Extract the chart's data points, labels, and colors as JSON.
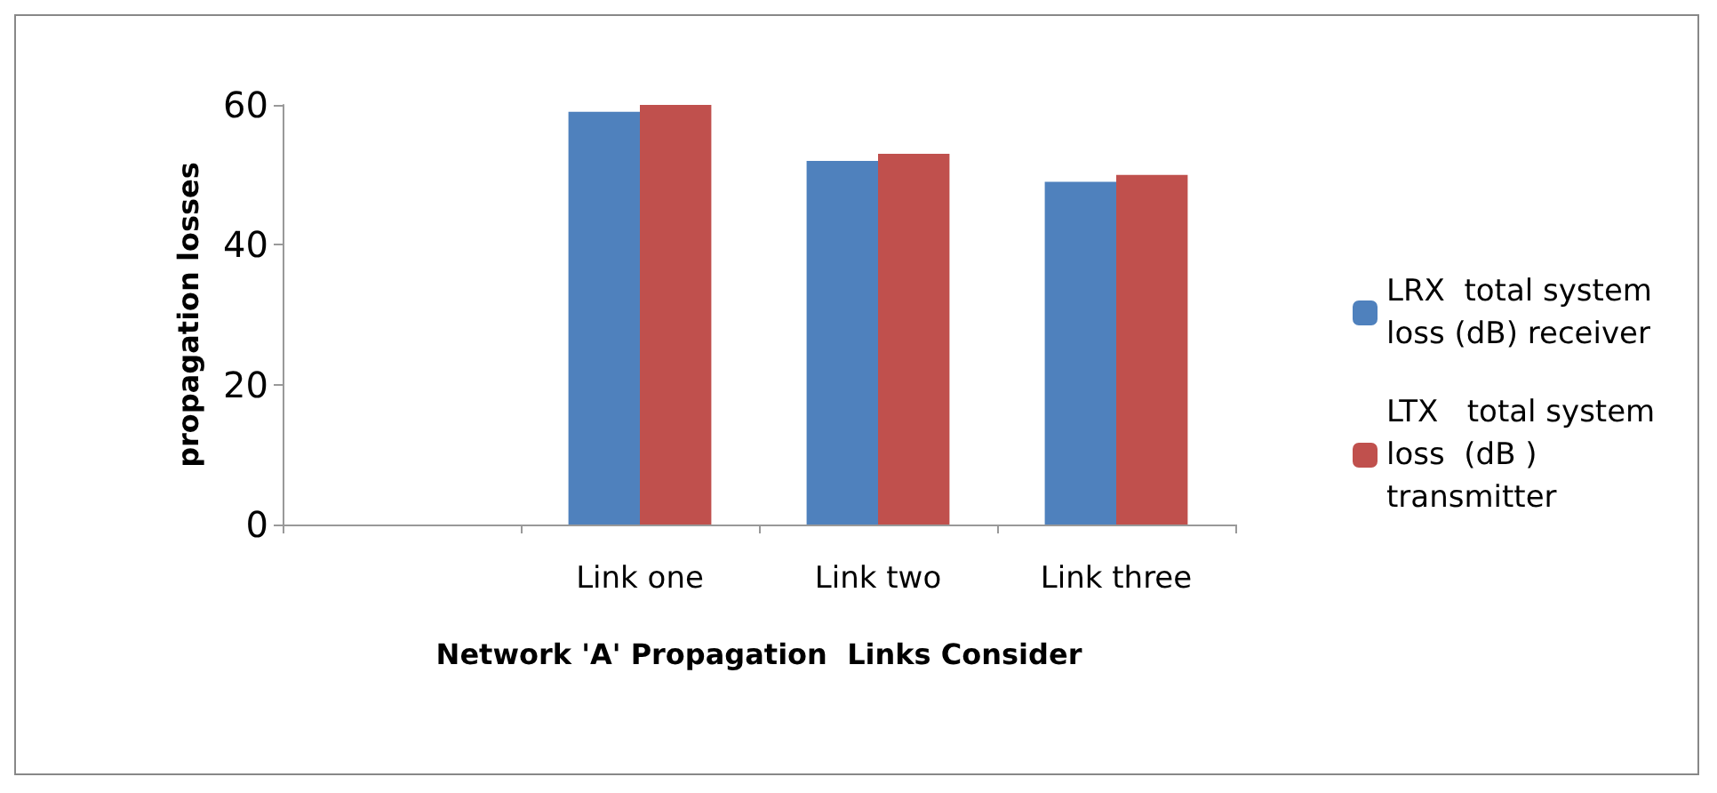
{
  "chart_data": {
    "type": "bar",
    "xlabel": "Network 'A' Propagation  Links Consider",
    "ylabel": "propagation losses",
    "categories": [
      null,
      "Link one",
      "Link two",
      "Link three"
    ],
    "series": [
      {
        "name": "LRX  total system loss (dB) receiver",
        "color": "#4f81bd",
        "values": [
          null,
          59,
          52,
          49
        ]
      },
      {
        "name": "LTX   total system loss  (dB ) transmitter",
        "color": "#c0504d",
        "values": [
          null,
          60,
          53,
          50
        ]
      }
    ],
    "ylim": [
      0,
      60
    ],
    "yticks": [
      0,
      20,
      40,
      60
    ],
    "grid": false,
    "legend": "right"
  }
}
